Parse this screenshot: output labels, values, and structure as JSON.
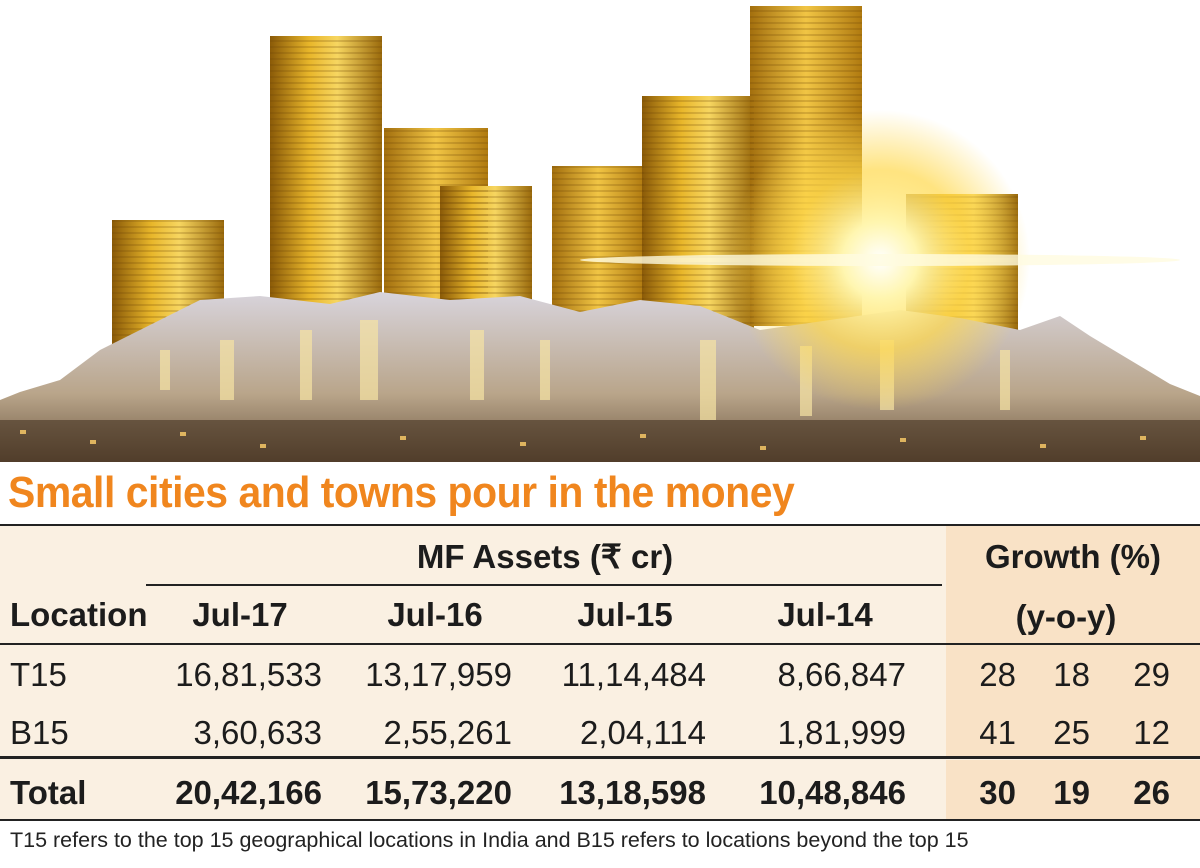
{
  "title": "Small cities and towns pour in the money",
  "header": {
    "group_assets": "MF Assets (₹ cr)",
    "group_growth": "Growth (%)",
    "growth_sub": "(y-o-y)",
    "location": "Location",
    "years": [
      "Jul-17",
      "Jul-16",
      "Jul-15",
      "Jul-14"
    ]
  },
  "rows": [
    {
      "location": "T15",
      "values": [
        "16,81,533",
        "13,17,959",
        "11,14,484",
        "8,66,847"
      ],
      "growth": [
        "28",
        "18",
        "29"
      ]
    },
    {
      "location": "B15",
      "values": [
        "3,60,633",
        "2,55,261",
        "2,04,114",
        "1,81,999"
      ],
      "growth": [
        "41",
        "25",
        "12"
      ]
    }
  ],
  "total": {
    "location": "Total",
    "values": [
      "20,42,166",
      "15,73,220",
      "13,18,598",
      "10,48,846"
    ],
    "growth": [
      "30",
      "19",
      "26"
    ]
  },
  "footnote": "T15 refers to the top 15 geographical locations in India and B15 refers to locations beyond the top 15",
  "colors": {
    "title": "#f0861e",
    "table_bg": "#faf0e2",
    "growth_bg": "#f9e2c6",
    "gold": "#d9a21c"
  }
}
